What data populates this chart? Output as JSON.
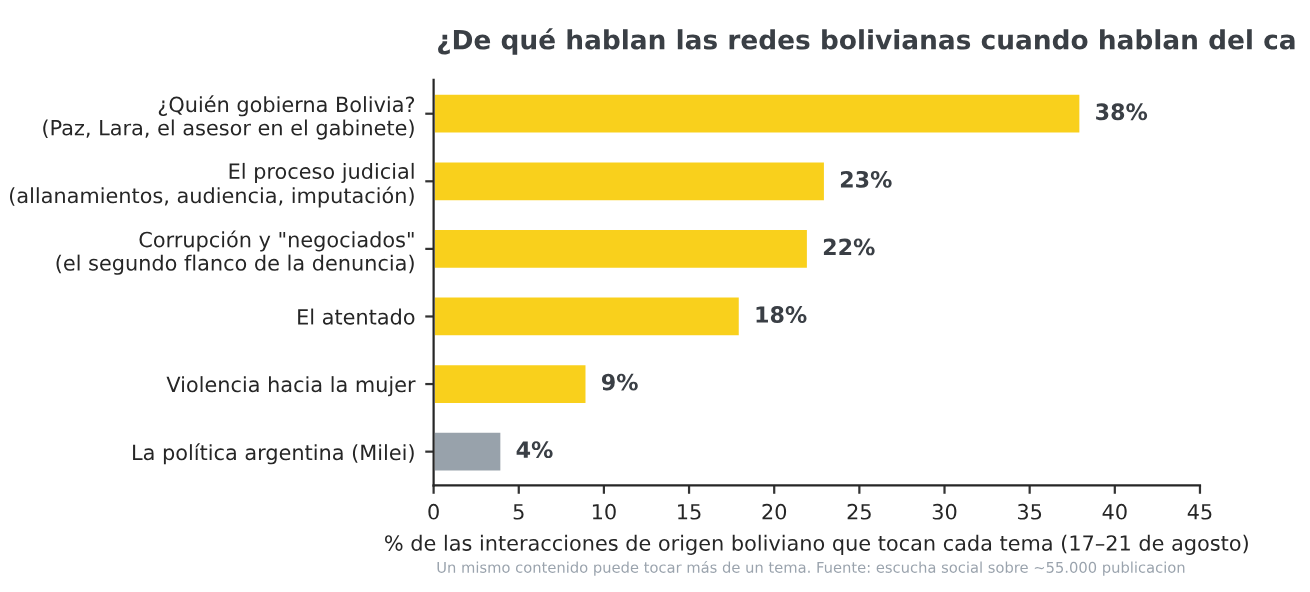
{
  "chart_data": {
    "type": "bar",
    "orientation": "horizontal",
    "title": "¿De qué hablan las redes bolivianas cuando hablan del ca",
    "xlabel": "% de las interacciones de origen boliviano que tocan cada tema (17–21 de agosto)",
    "annotations": [
      "Un mismo contenido puede tocar más de un tema. Fuente: escucha social sobre ~55.000 publicacion"
    ],
    "categories": [
      "¿Quién gobierna Bolivia?\n(Paz, Lara, el asesor en el gabinete)",
      "El proceso judicial\n(allanamientos, audiencia, imputación)",
      "Corrupción y \"negociados\"\n(el segundo flanco de la denuncia)",
      "El atentado",
      "Violencia hacia la mujer",
      "La política argentina (Milei)"
    ],
    "values": [
      38,
      23,
      22,
      18,
      9,
      4
    ],
    "value_labels": [
      "38%",
      "23%",
      "22%",
      "18%",
      "9%",
      "4%"
    ],
    "colors": [
      "#f9d01c",
      "#f9d01c",
      "#f9d01c",
      "#f9d01c",
      "#f9d01c",
      "#98a2ab"
    ],
    "xlim": [
      0,
      45
    ],
    "xticks": [
      0,
      5,
      10,
      15,
      20,
      25,
      30,
      35,
      40,
      45
    ],
    "grid": false,
    "legend": false
  }
}
